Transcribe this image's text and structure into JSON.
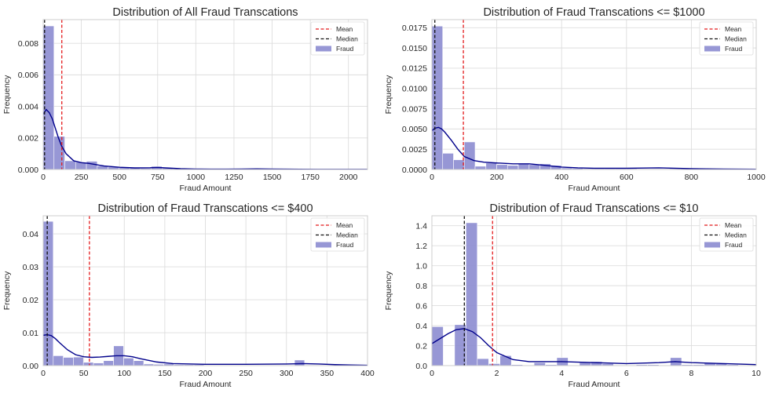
{
  "chart_data": [
    {
      "type": "bar",
      "title": "Distribution of All Fraud Transcations",
      "xlabel": "Fraud Amount",
      "ylabel": "Frequency",
      "xlim": [
        0,
        2125
      ],
      "ylim": [
        0,
        0.0095
      ],
      "xticks": [
        0,
        250,
        500,
        750,
        1000,
        1250,
        1500,
        1750,
        2000
      ],
      "xtick_labels": [
        "0",
        "250",
        "500",
        "750",
        "1000",
        "1250",
        "1500",
        "1750",
        "2000"
      ],
      "yticks": [
        0,
        0.002,
        0.004,
        0.006,
        0.008
      ],
      "ytick_labels": [
        "0.000",
        "0.002",
        "0.004",
        "0.006",
        "0.008"
      ],
      "grid": true,
      "legend": "top-right",
      "legend_entries": [
        "Mean",
        "Median",
        "Fraud"
      ],
      "mean": 122,
      "median": 9,
      "bin_width": 70.8,
      "bin_heights": [
        0.0091,
        0.0021,
        0.00055,
        0.00047,
        0.00052,
        0.00022,
        0.00016,
        0.00012,
        0.00014,
        8e-05,
        0.0002,
        8e-05,
        5e-05,
        4e-05,
        3e-05,
        3e-05,
        2e-05,
        2e-05,
        3e-05,
        6e-05,
        3e-05,
        2e-05,
        1e-05,
        1e-05,
        1e-05,
        1e-05,
        1e-05,
        1e-05,
        1e-05,
        1e-05
      ],
      "kde": {
        "x": [
          0,
          20,
          40,
          60,
          80,
          100,
          120,
          150,
          200,
          250,
          300,
          350,
          400,
          500,
          600,
          700,
          750,
          800,
          900,
          1000,
          1100,
          1200,
          1300,
          1400,
          1500,
          1600,
          1800,
          2000,
          2125
        ],
        "y": [
          0.0035,
          0.0038,
          0.0036,
          0.0032,
          0.0026,
          0.002,
          0.0015,
          0.001,
          0.00055,
          0.00043,
          0.00038,
          0.0003,
          0.00022,
          0.00014,
          0.0001,
          0.00011,
          0.00013,
          0.0001,
          5e-05,
          3e-05,
          2e-05,
          2e-05,
          3e-05,
          4e-05,
          3e-05,
          2e-05,
          1e-05,
          1e-05,
          1e-05
        ]
      },
      "colors": {
        "bars": "#8c8cd0",
        "kde": "#00008b",
        "mean": "#e41a1c",
        "median": "#111111"
      }
    },
    {
      "type": "bar",
      "title": "Distribution of Fraud Transcations <= $1000",
      "xlabel": "Fraud Amount",
      "ylabel": "Frequency",
      "xlim": [
        0,
        1000
      ],
      "ylim": [
        0,
        0.0185
      ],
      "xticks": [
        0,
        200,
        400,
        600,
        800,
        1000
      ],
      "xtick_labels": [
        "0",
        "200",
        "400",
        "600",
        "800",
        "1000"
      ],
      "yticks": [
        0,
        0.0025,
        0.005,
        0.0075,
        0.01,
        0.0125,
        0.015,
        0.0175
      ],
      "ytick_labels": [
        "0.0000",
        "0.0025",
        "0.0050",
        "0.0075",
        "0.0100",
        "0.0125",
        "0.0150",
        "0.0175"
      ],
      "grid": true,
      "legend": "top-right",
      "legend_entries": [
        "Mean",
        "Median",
        "Fraud"
      ],
      "mean": 97,
      "median": 9,
      "bin_width": 33.3,
      "bin_heights": [
        0.0177,
        0.002,
        0.0012,
        0.0034,
        0.0004,
        0.0008,
        0.0006,
        0.0005,
        0.0007,
        0.0006,
        0.0007,
        0.0005,
        0.0002,
        0.00015,
        0.0001,
        0.0001,
        0.0001,
        0.0001,
        0.0001,
        5e-05,
        5e-05,
        5e-05,
        0.0001,
        0.0001,
        5e-05,
        5e-05,
        5e-05,
        2e-05,
        2e-05,
        2e-05
      ],
      "kde": {
        "x": [
          0,
          10,
          20,
          30,
          40,
          60,
          80,
          100,
          130,
          160,
          200,
          250,
          300,
          350,
          400,
          450,
          500,
          600,
          700,
          750,
          800,
          900,
          1000
        ],
        "y": [
          0.0048,
          0.0051,
          0.0052,
          0.005,
          0.0046,
          0.0036,
          0.0025,
          0.0016,
          0.0011,
          0.0009,
          0.0008,
          0.0007,
          0.0007,
          0.0005,
          0.0003,
          0.0002,
          0.00015,
          0.00015,
          0.0002,
          0.00015,
          0.0001,
          5e-05,
          3e-05
        ]
      },
      "colors": {
        "bars": "#8c8cd0",
        "kde": "#00008b",
        "mean": "#e41a1c",
        "median": "#111111"
      }
    },
    {
      "type": "bar",
      "title": "Distribution of Fraud Transcations <= $400",
      "xlabel": "Fraud Amount",
      "ylabel": "Frequency",
      "xlim": [
        0,
        400
      ],
      "ylim": [
        0,
        0.0455
      ],
      "xticks": [
        0,
        50,
        100,
        150,
        200,
        250,
        300,
        350,
        400
      ],
      "xtick_labels": [
        "0",
        "50",
        "100",
        "150",
        "200",
        "250",
        "300",
        "350",
        "400"
      ],
      "yticks": [
        0,
        0.01,
        0.02,
        0.03,
        0.04
      ],
      "ytick_labels": [
        "0.00",
        "0.01",
        "0.02",
        "0.03",
        "0.04"
      ],
      "grid": true,
      "legend": "top-right",
      "legend_entries": [
        "Mean",
        "Median",
        "Fraud"
      ],
      "mean": 57,
      "median": 5,
      "bin_width": 12.4,
      "bin_heights": [
        0.0438,
        0.003,
        0.0025,
        0.0026,
        0.001,
        0.0008,
        0.0015,
        0.006,
        0.0023,
        0.0015,
        0.0005,
        0.0004,
        0.0005,
        0.0003,
        0.0003,
        0.0003,
        0.0002,
        0.0002,
        0.0002,
        0.0002,
        0.0002,
        0.0002,
        0.0002,
        0.0002,
        0.0002,
        0.0017,
        0.0002,
        0.0002,
        0.0002,
        0.0002,
        0.0002,
        0.0002
      ],
      "kde": {
        "x": [
          0,
          5,
          10,
          15,
          20,
          30,
          40,
          50,
          60,
          70,
          80,
          90,
          100,
          110,
          120,
          140,
          160,
          200,
          250,
          300,
          320,
          340,
          360,
          380,
          400
        ],
        "y": [
          0.0092,
          0.0094,
          0.0091,
          0.0082,
          0.007,
          0.0048,
          0.0033,
          0.0027,
          0.0025,
          0.0026,
          0.0028,
          0.003,
          0.003,
          0.0027,
          0.0021,
          0.0011,
          0.0006,
          0.0004,
          0.0004,
          0.0005,
          0.0006,
          0.0005,
          0.0003,
          0.0002,
          0.0001
        ]
      },
      "colors": {
        "bars": "#8c8cd0",
        "kde": "#00008b",
        "mean": "#e41a1c",
        "median": "#111111"
      }
    },
    {
      "type": "bar",
      "title": "Distribution of Fraud Transcations <= $10",
      "xlabel": "Fraud Amount",
      "ylabel": "Frequency",
      "xlim": [
        0,
        10
      ],
      "ylim": [
        0,
        1.5
      ],
      "xticks": [
        0,
        2,
        4,
        6,
        8,
        10
      ],
      "xtick_labels": [
        "0",
        "2",
        "4",
        "6",
        "8",
        "10"
      ],
      "yticks": [
        0,
        0.2,
        0.4,
        0.6,
        0.8,
        1.0,
        1.2,
        1.4
      ],
      "ytick_labels": [
        "0.0",
        "0.2",
        "0.4",
        "0.6",
        "0.8",
        "1.0",
        "1.2",
        "1.4"
      ],
      "grid": true,
      "legend": "top-right",
      "legend_entries": [
        "Mean",
        "Median",
        "Fraud"
      ],
      "mean": 1.87,
      "median": 1.0,
      "bin_width": 0.35,
      "bin_heights": [
        0.39,
        0.0,
        0.41,
        1.43,
        0.07,
        0.02,
        0.1,
        0.01,
        0.0,
        0.03,
        0.01,
        0.08,
        0.0,
        0.03,
        0.04,
        0.02,
        0.0,
        0.0,
        0.01,
        0.01,
        0.0,
        0.08,
        0.01,
        0.01,
        0.03,
        0.02,
        0.01,
        0.0
      ],
      "kde": {
        "x": [
          0,
          0.25,
          0.5,
          0.75,
          1.0,
          1.25,
          1.5,
          1.75,
          2.0,
          2.5,
          3.0,
          4.0,
          5.0,
          6.0,
          7.0,
          7.5,
          8.0,
          9.0,
          10.0
        ],
        "y": [
          0.22,
          0.27,
          0.32,
          0.36,
          0.37,
          0.34,
          0.28,
          0.2,
          0.13,
          0.06,
          0.04,
          0.04,
          0.03,
          0.02,
          0.03,
          0.04,
          0.03,
          0.02,
          0.01
        ]
      },
      "colors": {
        "bars": "#8c8cd0",
        "kde": "#00008b",
        "mean": "#e41a1c",
        "median": "#111111"
      }
    }
  ]
}
